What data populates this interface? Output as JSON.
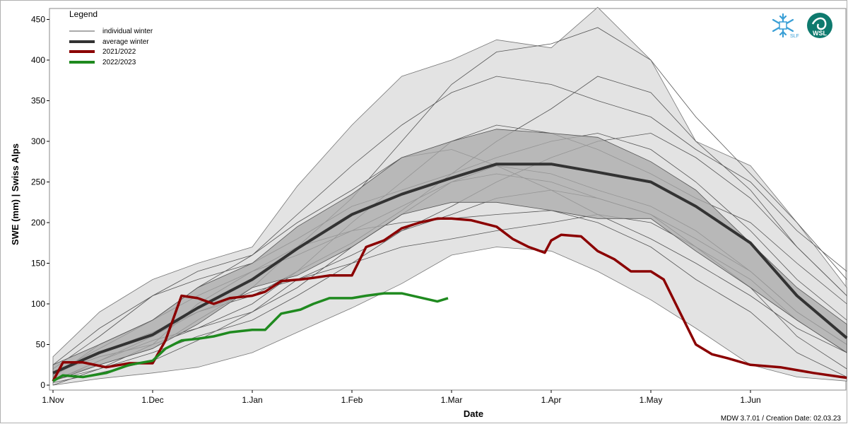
{
  "chart_data": {
    "type": "area",
    "title": "",
    "xlabel": "Date",
    "ylabel": "SWE  (mm)  |  Swiss Alps",
    "ylim": [
      0,
      460
    ],
    "xlim": [
      "1.Nov",
      "1.Jul"
    ],
    "x_ticks": [
      "1.Nov",
      "1.Dec",
      "1.Jan",
      "1.Feb",
      "1.Mar",
      "1.Apr",
      "1.May",
      "1.Jun"
    ],
    "y_ticks": [
      0,
      50,
      100,
      150,
      200,
      250,
      300,
      350,
      400,
      450
    ],
    "grid": false,
    "legend": {
      "title": "Legend",
      "placement": "top-left",
      "entries": [
        "individual winter",
        "average winter",
        "2021/2022",
        "2022/2023"
      ]
    },
    "colors": {
      "individual": "#555555",
      "average": "#333333",
      "season_2122": "#8b0000",
      "season_2223": "#1f8a1f",
      "range_fill": "#e3e3e3",
      "iqr_fill": "#a9a9a9"
    },
    "envelope": {
      "x": [
        "1.Nov",
        "15.Nov",
        "1.Dec",
        "15.Dec",
        "1.Jan",
        "15.Jan",
        "1.Feb",
        "15.Feb",
        "1.Mar",
        "15.Mar",
        "1.Apr",
        "15.Apr",
        "1.May",
        "15.May",
        "1.Jun",
        "15.Jun",
        "30.Jun"
      ],
      "min": [
        0,
        8,
        15,
        22,
        40,
        65,
        95,
        125,
        160,
        170,
        165,
        140,
        105,
        70,
        25,
        10,
        5
      ],
      "max": [
        35,
        90,
        130,
        150,
        170,
        245,
        320,
        380,
        400,
        425,
        415,
        465,
        400,
        300,
        270,
        200,
        120
      ]
    },
    "iqr_band": {
      "x": [
        "1.Nov",
        "15.Nov",
        "1.Dec",
        "15.Dec",
        "1.Jan",
        "15.Jan",
        "1.Feb",
        "15.Feb",
        "1.Mar",
        "15.Mar",
        "1.Apr",
        "15.Apr",
        "1.May",
        "15.May",
        "1.Jun",
        "15.Jun",
        "30.Jun"
      ],
      "lower": [
        5,
        25,
        45,
        75,
        120,
        135,
        170,
        210,
        225,
        225,
        215,
        205,
        205,
        165,
        120,
        80,
        40
      ],
      "upper": [
        25,
        50,
        80,
        120,
        150,
        195,
        235,
        280,
        300,
        315,
        310,
        305,
        275,
        240,
        175,
        120,
        75
      ]
    },
    "series": [
      {
        "name": "average winter",
        "x": [
          "1.Nov",
          "15.Nov",
          "1.Dec",
          "15.Dec",
          "1.Jan",
          "15.Jan",
          "1.Feb",
          "15.Feb",
          "1.Mar",
          "15.Mar",
          "1.Apr",
          "15.Apr",
          "1.May",
          "15.May",
          "1.Jun",
          "15.Jun",
          "30.Jun"
        ],
        "values": [
          15,
          40,
          62,
          95,
          130,
          168,
          210,
          235,
          255,
          272,
          272,
          262,
          250,
          220,
          175,
          110,
          58
        ]
      },
      {
        "name": "2021/2022",
        "x": [
          "1.Nov",
          "4.Nov",
          "10.Nov",
          "17.Nov",
          "24.Nov",
          "1.Dec",
          "5.Dec",
          "10.Dec",
          "15.Dec",
          "20.Dec",
          "25.Dec",
          "1.Jan",
          "5.Jan",
          "10.Jan",
          "16.Jan",
          "20.Jan",
          "25.Jan",
          "1.Feb",
          "5.Feb",
          "10.Feb",
          "15.Feb",
          "20.Feb",
          "25.Feb",
          "1.Mar",
          "7.Mar",
          "15.Mar",
          "20.Mar",
          "25.Mar",
          "30.Mar",
          "1.Apr",
          "4.Apr",
          "10.Apr",
          "15.Apr",
          "20.Apr",
          "25.Apr",
          "1.May",
          "5.May",
          "10.May",
          "15.May",
          "20.May",
          "25.May",
          "1.Jun",
          "10.Jun",
          "20.Jun",
          "30.Jun"
        ],
        "values": [
          5,
          28,
          28,
          22,
          27,
          27,
          55,
          110,
          107,
          100,
          107,
          110,
          115,
          128,
          130,
          132,
          135,
          135,
          170,
          178,
          193,
          200,
          205,
          205,
          203,
          195,
          180,
          170,
          163,
          178,
          185,
          183,
          165,
          155,
          140,
          140,
          130,
          90,
          50,
          38,
          33,
          25,
          22,
          15,
          9
        ]
      },
      {
        "name": "2022/2023",
        "x": [
          "1.Nov",
          "4.Nov",
          "10.Nov",
          "17.Nov",
          "24.Nov",
          "1.Dec",
          "5.Dec",
          "10.Dec",
          "15.Dec",
          "20.Dec",
          "25.Dec",
          "1.Jan",
          "5.Jan",
          "10.Jan",
          "16.Jan",
          "20.Jan",
          "25.Jan",
          "1.Feb",
          "5.Feb",
          "10.Feb",
          "15.Feb",
          "20.Feb",
          "25.Feb",
          "28.Feb"
        ],
        "values": [
          5,
          12,
          10,
          15,
          25,
          30,
          45,
          55,
          57,
          60,
          65,
          68,
          68,
          88,
          93,
          100,
          107,
          107,
          110,
          113,
          113,
          108,
          103,
          107
        ]
      }
    ],
    "individual_winters": [
      [
        5,
        30,
        60,
        90,
        110,
        140,
        175,
        215,
        260,
        300,
        340,
        380,
        360,
        300,
        240,
        170,
        110
      ],
      [
        10,
        50,
        80,
        110,
        140,
        160,
        190,
        220,
        250,
        260,
        250,
        230,
        210,
        180,
        140,
        90,
        50
      ],
      [
        15,
        35,
        50,
        70,
        100,
        140,
        200,
        250,
        300,
        320,
        310,
        290,
        260,
        230,
        200,
        150,
        100
      ],
      [
        20,
        60,
        110,
        140,
        160,
        200,
        240,
        280,
        290,
        270,
        240,
        210,
        180,
        150,
        110,
        70,
        40
      ],
      [
        0,
        20,
        40,
        60,
        80,
        110,
        150,
        190,
        220,
        250,
        280,
        300,
        310,
        280,
        230,
        170,
        110
      ],
      [
        8,
        25,
        45,
        80,
        120,
        170,
        230,
        300,
        370,
        410,
        420,
        440,
        400,
        330,
        260,
        200,
        130
      ],
      [
        12,
        40,
        65,
        90,
        115,
        130,
        150,
        170,
        180,
        190,
        200,
        210,
        200,
        170,
        130,
        80,
        40
      ],
      [
        3,
        15,
        30,
        55,
        90,
        130,
        160,
        190,
        210,
        230,
        240,
        230,
        210,
        170,
        120,
        60,
        20
      ],
      [
        25,
        70,
        110,
        130,
        150,
        180,
        220,
        240,
        260,
        280,
        300,
        310,
        290,
        250,
        190,
        130,
        80
      ],
      [
        6,
        20,
        50,
        100,
        140,
        170,
        190,
        200,
        205,
        210,
        215,
        200,
        170,
        130,
        90,
        40,
        10
      ],
      [
        15,
        45,
        80,
        120,
        160,
        210,
        270,
        320,
        360,
        380,
        370,
        350,
        330,
        290,
        250,
        190,
        140
      ],
      [
        5,
        30,
        55,
        70,
        90,
        120,
        170,
        210,
        250,
        270,
        260,
        240,
        220,
        190,
        140,
        90,
        50
      ]
    ],
    "footer": "MDW 3.7.01 / Creation Date: 02.03.23",
    "logos": [
      "SLF",
      "WSL"
    ]
  }
}
